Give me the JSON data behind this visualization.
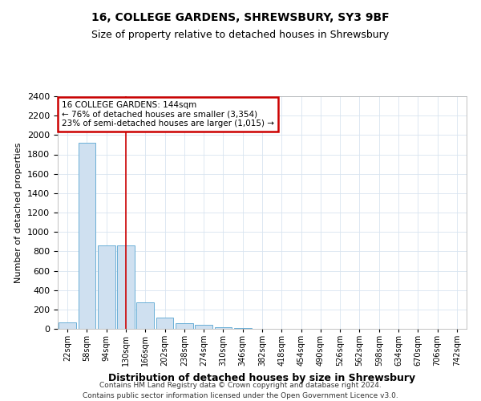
{
  "title": "16, COLLEGE GARDENS, SHREWSBURY, SY3 9BF",
  "subtitle": "Size of property relative to detached houses in Shrewsbury",
  "xlabel": "Distribution of detached houses by size in Shrewsbury",
  "ylabel": "Number of detached properties",
  "bar_color": "#cfe0f0",
  "bar_edge_color": "#6aaed6",
  "categories": [
    "22sqm",
    "58sqm",
    "94sqm",
    "130sqm",
    "166sqm",
    "202sqm",
    "238sqm",
    "274sqm",
    "310sqm",
    "346sqm",
    "382sqm",
    "418sqm",
    "454sqm",
    "490sqm",
    "526sqm",
    "562sqm",
    "598sqm",
    "634sqm",
    "670sqm",
    "706sqm",
    "742sqm"
  ],
  "values": [
    70,
    1920,
    860,
    860,
    270,
    120,
    60,
    40,
    18,
    5,
    2,
    0,
    0,
    0,
    0,
    0,
    0,
    0,
    0,
    0,
    0
  ],
  "ylim": [
    0,
    2400
  ],
  "yticks": [
    0,
    200,
    400,
    600,
    800,
    1000,
    1200,
    1400,
    1600,
    1800,
    2000,
    2200,
    2400
  ],
  "property_line_x": 3.0,
  "annotation_text": "16 COLLEGE GARDENS: 144sqm\n← 76% of detached houses are smaller (3,354)\n23% of semi-detached houses are larger (1,015) →",
  "footer_line1": "Contains HM Land Registry data © Crown copyright and database right 2024.",
  "footer_line2": "Contains public sector information licensed under the Open Government Licence v3.0.",
  "grid_color": "#d8e4f0",
  "bg_color": "#ffffff",
  "title_fontsize": 10,
  "subtitle_fontsize": 9,
  "annotation_box_color": "#ffffff",
  "annotation_box_edge_color": "#cc0000",
  "vline_color": "#cc0000"
}
